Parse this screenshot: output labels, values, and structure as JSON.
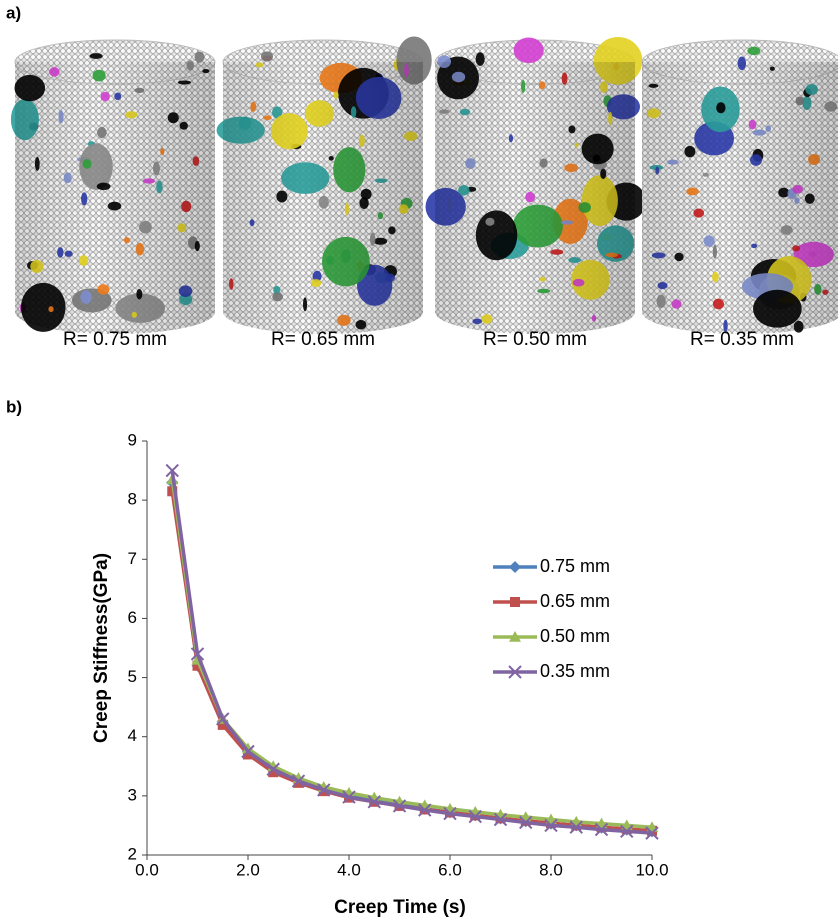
{
  "panel_a": {
    "label": "a)",
    "images": [
      {
        "caption": "R= 0.75 mm"
      },
      {
        "caption": "R= 0.65 mm"
      },
      {
        "caption": "R= 0.50 mm"
      },
      {
        "caption": "R= 0.35 mm"
      }
    ]
  },
  "chart_data": {
    "type": "line",
    "panel_label": "b)",
    "x_label": "Creep Time (s)",
    "y_label": "Creep Stiffness(GPa)",
    "x": [
      0.5,
      1.0,
      1.5,
      2.0,
      2.5,
      3.0,
      3.5,
      4.0,
      4.5,
      5.0,
      5.5,
      6.0,
      6.5,
      7.0,
      7.5,
      8.0,
      8.5,
      9.0,
      9.5,
      10.0
    ],
    "xlim": [
      0,
      10
    ],
    "xticks": [
      {
        "value": 0,
        "label": "0.0"
      },
      {
        "value": 2,
        "label": "2.0"
      },
      {
        "value": 4,
        "label": "4.0"
      },
      {
        "value": 6,
        "label": "6.0"
      },
      {
        "value": 8,
        "label": "8.0"
      },
      {
        "value": 10,
        "label": "10.0"
      }
    ],
    "ylim": [
      2,
      9
    ],
    "yticks": [
      2,
      3,
      4,
      5,
      6,
      7,
      8,
      9
    ],
    "grid": false,
    "series": [
      {
        "name": "0.75 mm",
        "color": "#4f81bd",
        "marker": "diamond",
        "values": [
          8.3,
          5.2,
          4.25,
          3.75,
          3.45,
          3.25,
          3.1,
          3.0,
          2.92,
          2.85,
          2.78,
          2.72,
          2.67,
          2.62,
          2.57,
          2.53,
          2.5,
          2.46,
          2.43,
          2.4
        ]
      },
      {
        "name": "0.65 mm",
        "color": "#c0504d",
        "marker": "square",
        "values": [
          8.15,
          5.2,
          4.2,
          3.7,
          3.4,
          3.22,
          3.08,
          2.97,
          2.9,
          2.83,
          2.77,
          2.72,
          2.67,
          2.62,
          2.58,
          2.54,
          2.5,
          2.47,
          2.44,
          2.41
        ]
      },
      {
        "name": "0.50 mm",
        "color": "#9bbb59",
        "marker": "triangle",
        "values": [
          8.35,
          5.3,
          4.3,
          3.8,
          3.5,
          3.3,
          3.15,
          3.05,
          2.97,
          2.9,
          2.84,
          2.78,
          2.73,
          2.68,
          2.64,
          2.6,
          2.56,
          2.53,
          2.5,
          2.47
        ]
      },
      {
        "name": "0.35 mm",
        "color": "#8064a2",
        "marker": "x",
        "values": [
          8.5,
          5.4,
          4.3,
          3.75,
          3.45,
          3.25,
          3.1,
          2.98,
          2.9,
          2.83,
          2.76,
          2.7,
          2.65,
          2.6,
          2.55,
          2.5,
          2.47,
          2.43,
          2.4,
          2.37
        ]
      }
    ]
  }
}
